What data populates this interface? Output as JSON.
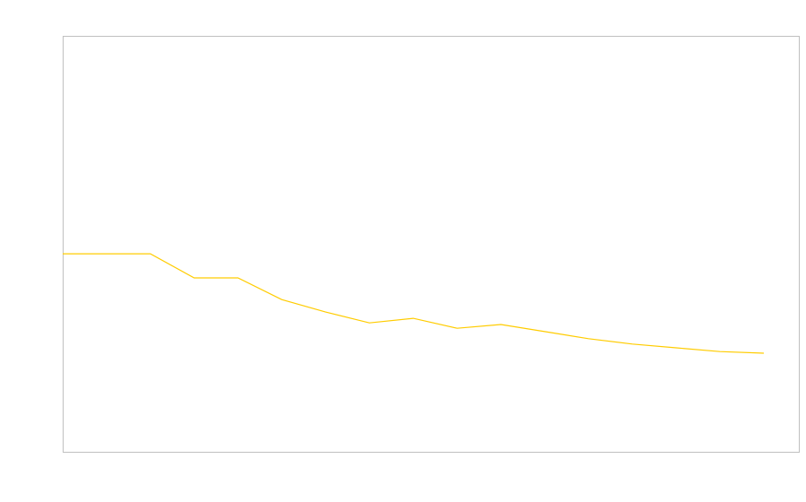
{
  "chart_data": {
    "type": "line",
    "title": "",
    "xlabel": "",
    "ylabel": "",
    "x": [
      0,
      1,
      2,
      3,
      4,
      5,
      6,
      7,
      8,
      9,
      10,
      11,
      12,
      13,
      14,
      15,
      16
    ],
    "series": [
      {
        "color": "#ffcc00",
        "values": [
          47.6,
          47.6,
          47.6,
          41.8,
          41.8,
          36.6,
          33.6,
          31.0,
          32.1,
          29.7,
          30.6,
          28.9,
          27.2,
          25.9,
          25.0,
          24.1,
          23.7
        ]
      }
    ],
    "xlim": [
      0,
      16.8
    ],
    "ylim": [
      0,
      100
    ],
    "grid": false,
    "frame_color": "#c0c0c0",
    "tick_labels_visible": false
  }
}
